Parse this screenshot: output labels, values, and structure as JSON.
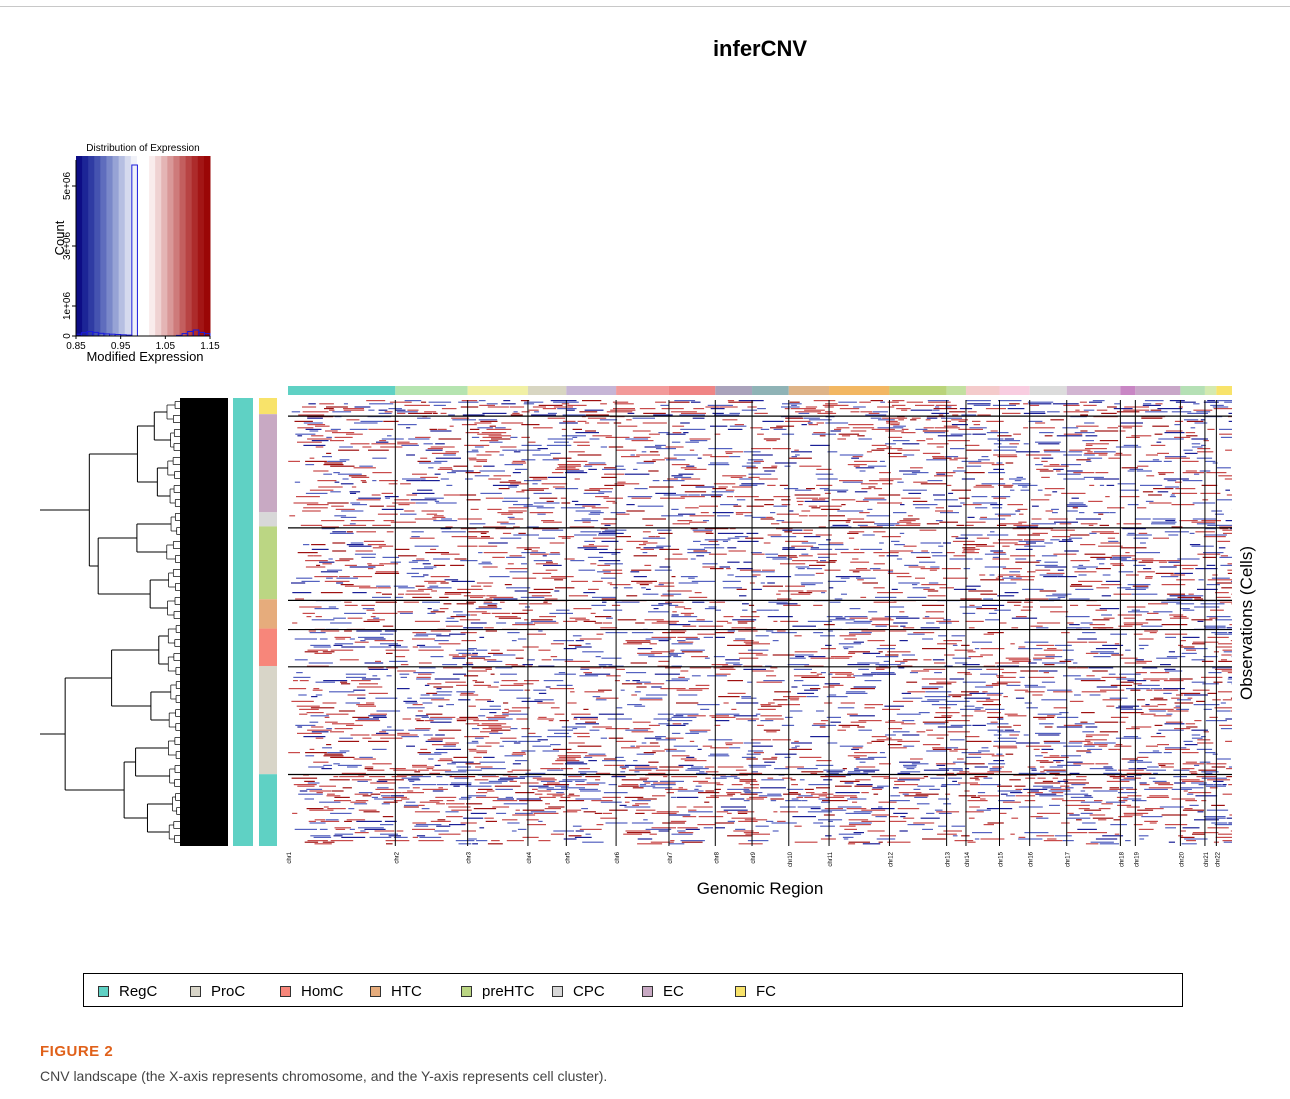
{
  "chart_data": [
    {
      "type": "bar",
      "title": "Distribution of Expression",
      "xlabel": "Modified Expression",
      "ylabel": "Count",
      "xlim": [
        0.85,
        1.15
      ],
      "ylim": [
        0,
        6000000
      ],
      "x_ticks": [
        "0.85",
        "0.95",
        "1.05",
        "1.15"
      ],
      "y_ticks": [
        "0",
        "1e+06",
        "3e+06",
        "5e+06"
      ],
      "bins": [
        0.85,
        0.8625,
        0.875,
        0.8875,
        0.9,
        0.9125,
        0.925,
        0.9375,
        0.95,
        0.9625,
        0.975,
        0.9875,
        1.0,
        1.0125,
        1.025,
        1.0375,
        1.05,
        1.0625,
        1.075,
        1.0875,
        1.1,
        1.1125,
        1.125,
        1.1375,
        1.15
      ],
      "counts": [
        60000,
        110000,
        150000,
        120000,
        90000,
        70000,
        60000,
        50000,
        40000,
        30000,
        5700000,
        0,
        0,
        0,
        0,
        0,
        0,
        0,
        20000,
        80000,
        150000,
        200000,
        120000,
        80000
      ],
      "color_scale": [
        "#0d0d85",
        "#1c2596",
        "#2f3ba3",
        "#4553b0",
        "#5f6dbd",
        "#7a88c9",
        "#97a3d5",
        "#b6bfe2",
        "#d5daee",
        "#f0f1f8",
        "#ffffff",
        "#ffffff",
        "#f9ecec",
        "#efd2d2",
        "#e4b5b5",
        "#d99898",
        "#ce7b7b",
        "#c35f5f",
        "#b84444",
        "#ad2b2b",
        "#a31515",
        "#9a0606"
      ]
    },
    {
      "type": "heatmap",
      "title": "inferCNV",
      "xlabel": "Genomic Region",
      "ylabel": "Observations (Cells)",
      "chromosomes": [
        {
          "name": "chr1",
          "size": 1098,
          "color": "#5fd1c4"
        },
        {
          "name": "chr2",
          "size": 740,
          "color": "#b5e4b0"
        },
        {
          "name": "chr3",
          "size": 617,
          "color": "#f1f0a4"
        },
        {
          "name": "chr4",
          "size": 393,
          "color": "#d8d6c2"
        },
        {
          "name": "chr5",
          "size": 509,
          "color": "#c6b5d6"
        },
        {
          "name": "chr6",
          "size": 541,
          "color": "#f29a9a"
        },
        {
          "name": "chr7",
          "size": 474,
          "color": "#ef8585"
        },
        {
          "name": "chr8",
          "size": 376,
          "color": "#a9a2bb"
        },
        {
          "name": "chr9",
          "size": 376,
          "color": "#8fb3b6"
        },
        {
          "name": "chr10",
          "size": 412,
          "color": "#deb488"
        },
        {
          "name": "chr11",
          "size": 618,
          "color": "#f2b763"
        },
        {
          "name": "chr12",
          "size": 585,
          "color": "#bad47a"
        },
        {
          "name": "chr13",
          "size": 198,
          "color": "#c3e0a0"
        },
        {
          "name": "chr14",
          "size": 343,
          "color": "#f4cbcb"
        },
        {
          "name": "chr15",
          "size": 309,
          "color": "#f8cde0"
        },
        {
          "name": "chr16",
          "size": 379,
          "color": "#dcdcdc"
        },
        {
          "name": "chr17",
          "size": 549,
          "color": "#d2b5d2"
        },
        {
          "name": "chr18",
          "size": 153,
          "color": "#c886c4"
        },
        {
          "name": "chr19",
          "size": 461,
          "color": "#c8a7c8"
        },
        {
          "name": "chr20",
          "size": 251,
          "color": "#b5e0b5"
        },
        {
          "name": "chr21",
          "size": 117,
          "color": "#d4eab0"
        },
        {
          "name": "chr22",
          "size": 160,
          "color": "#f8e36a"
        }
      ],
      "clusters": [
        {
          "name": "FC",
          "cells": 16,
          "color": "#f8e36a"
        },
        {
          "name": "EC",
          "cells": 97,
          "color": "#c8a9c3"
        },
        {
          "name": "CPC",
          "cells": 14,
          "color": "#d8d8d8"
        },
        {
          "name": "preHTC",
          "cells": 72,
          "color": "#bbd683"
        },
        {
          "name": "HTC",
          "cells": 29,
          "color": "#e6ac7c"
        },
        {
          "name": "HomC",
          "cells": 37,
          "color": "#f7867a"
        },
        {
          "name": "ProC",
          "cells": 107,
          "color": "#d8d5c8"
        },
        {
          "name": "RegC",
          "cells": 71,
          "color": "#5fd1c4"
        }
      ],
      "color_low": "#2430a5",
      "color_high": "#b51818",
      "color_mid": "#ffffff"
    }
  ],
  "legend": [
    {
      "label": "RegC",
      "color": "#5fd1c4"
    },
    {
      "label": "ProC",
      "color": "#d8d5c8"
    },
    {
      "label": "HomC",
      "color": "#f7867a"
    },
    {
      "label": "HTC",
      "color": "#e6ac7c"
    },
    {
      "label": "preHTC",
      "color": "#bbd683"
    },
    {
      "label": "CPC",
      "color": "#d8d8d8"
    },
    {
      "label": "EC",
      "color": "#c8a9c3"
    },
    {
      "label": "FC",
      "color": "#f8e36a"
    }
  ],
  "figure": {
    "label": "FIGURE 2",
    "caption": "CNV landscape (the X-axis represents chromosome, and the Y-axis represents cell cluster)."
  }
}
